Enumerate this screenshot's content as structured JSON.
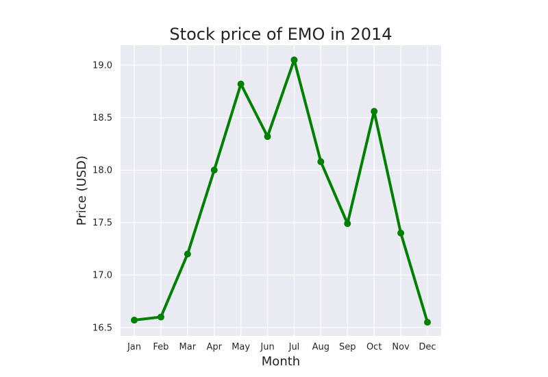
{
  "chart_data": {
    "type": "line",
    "title": "Stock price of EMO in 2014",
    "xlabel": "Month",
    "ylabel": "Price (USD)",
    "categories": [
      "Jan",
      "Feb",
      "Mar",
      "Apr",
      "May",
      "Jun",
      "Jul",
      "Aug",
      "Sep",
      "Oct",
      "Nov",
      "Dec"
    ],
    "series": [
      {
        "values": [
          16.57,
          16.6,
          17.2,
          18.0,
          18.82,
          18.32,
          19.05,
          18.08,
          17.49,
          18.56,
          17.4,
          16.55
        ],
        "color": "#008000",
        "marker": "circle"
      }
    ],
    "yticks": [
      "16.5",
      "17.0",
      "17.5",
      "18.0",
      "18.5",
      "19.0"
    ],
    "ylim": [
      16.42,
      19.19
    ],
    "grid": true,
    "background": "#eaeaf2",
    "grid_color": "#ffffff"
  }
}
